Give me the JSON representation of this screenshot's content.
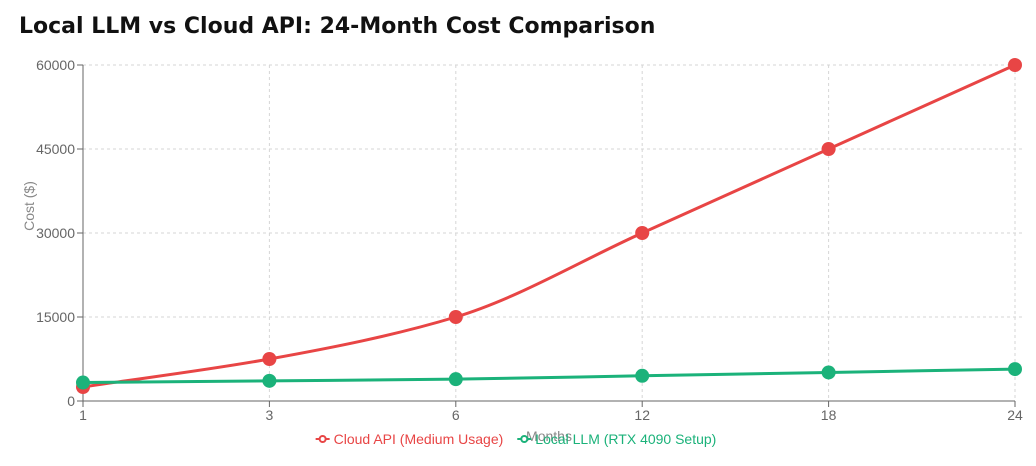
{
  "chart_data": {
    "type": "line",
    "title": "Local LLM vs Cloud API: 24-Month Cost Comparison",
    "xlabel": "Months",
    "ylabel": "Cost ($)",
    "categories": [
      "1",
      "3",
      "6",
      "12",
      "18",
      "24"
    ],
    "ylim": [
      0,
      60000
    ],
    "yticks": [
      0,
      15000,
      30000,
      45000,
      60000
    ],
    "grid": true,
    "legend_position": "bottom",
    "series": [
      {
        "name": "Cloud API (Medium Usage)",
        "color": "#e84545",
        "values": [
          2500,
          7500,
          15000,
          30000,
          45000,
          60000
        ]
      },
      {
        "name": "Local LLM (RTX 4090 Setup)",
        "color": "#1bb27a",
        "values": [
          3300,
          3600,
          3900,
          4500,
          5100,
          5700
        ]
      }
    ]
  }
}
